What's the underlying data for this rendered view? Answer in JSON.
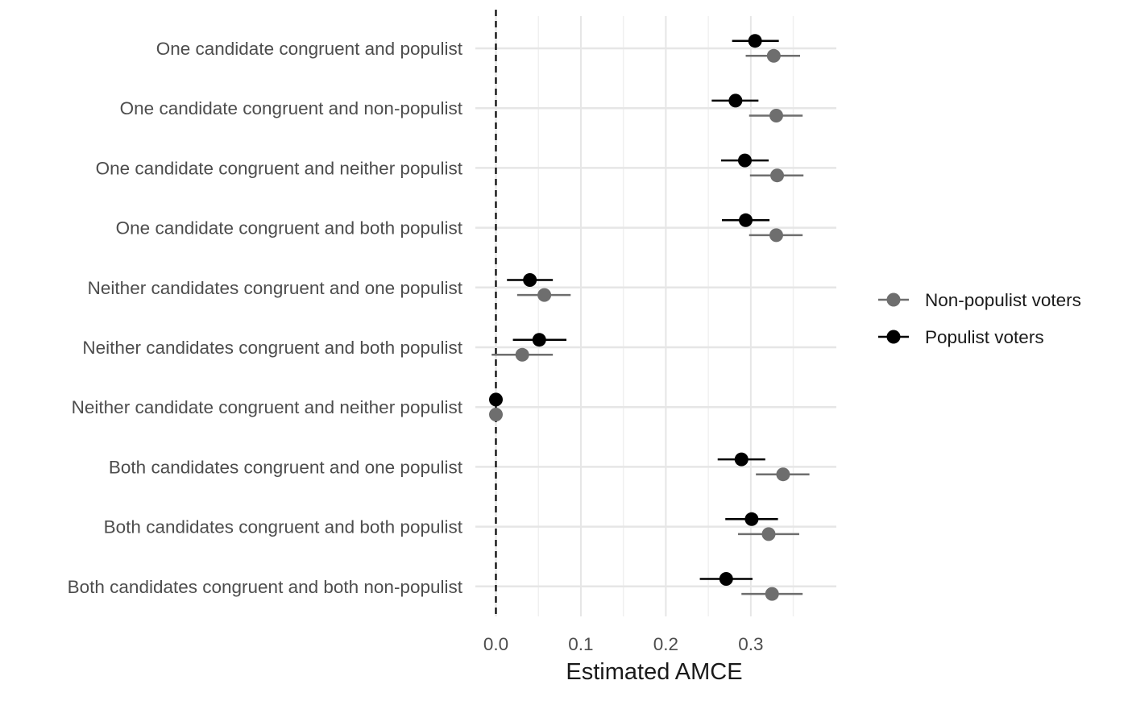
{
  "chart_data": {
    "type": "scatter",
    "subtype": "coefficient-plot-with-error-bars",
    "xlabel": "Estimated AMCE",
    "ylabel": "",
    "title": "",
    "xlim": [
      -0.025,
      0.385
    ],
    "x_ticks": [
      0.0,
      0.1,
      0.2,
      0.3
    ],
    "x_tick_labels": [
      "0.0",
      "0.1",
      "0.2",
      "0.3"
    ],
    "reference_line": {
      "x": 0,
      "style": "dashed"
    },
    "grid": true,
    "legend_position": "right",
    "categories": [
      "One candidate congruent and populist",
      "One candidate congruent and non-populist",
      "One candidate congruent and neither populist",
      "One candidate congruent and both populist",
      "Neither candidates congruent and one populist",
      "Neither candidates congruent and both populist",
      "Neither candidate congruent and neither populist",
      "Both candidates congruent and one populist",
      "Both candidates congruent and both populist",
      "Both candidates congruent and both non-populist"
    ],
    "series": [
      {
        "name": "Non-populist voters",
        "color": "#6e6e6e",
        "values": [
          0.327,
          0.33,
          0.331,
          0.33,
          0.057,
          0.031,
          0.0,
          0.338,
          0.321,
          0.325
        ],
        "lower": [
          0.294,
          0.298,
          0.299,
          0.298,
          0.025,
          -0.005,
          0.0,
          0.306,
          0.285,
          0.289
        ],
        "upper": [
          0.358,
          0.361,
          0.362,
          0.361,
          0.088,
          0.067,
          0.0,
          0.369,
          0.357,
          0.361
        ]
      },
      {
        "name": "Populist voters",
        "color": "#000000",
        "values": [
          0.305,
          0.282,
          0.293,
          0.294,
          0.04,
          0.051,
          0.0,
          0.289,
          0.301,
          0.271
        ],
        "lower": [
          0.278,
          0.254,
          0.265,
          0.266,
          0.013,
          0.02,
          0.0,
          0.261,
          0.27,
          0.24
        ],
        "upper": [
          0.333,
          0.309,
          0.321,
          0.322,
          0.067,
          0.083,
          0.0,
          0.317,
          0.332,
          0.302
        ]
      }
    ]
  }
}
